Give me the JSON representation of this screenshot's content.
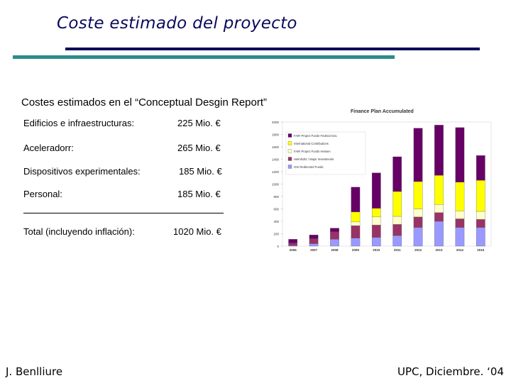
{
  "title": "Coste estimado del proyecto",
  "subtitle": "Costes estimados en el “Conceptual Desgin Report”",
  "costs": [
    {
      "label": "Edificios  e infraestructuras:",
      "value": "225 Mio. €"
    },
    {
      "label": "Aceleradorr:",
      "value": "265 Mio. €"
    },
    {
      "label": "Dispositivos experimentales:",
      "value": "185 Mio. €"
    },
    {
      "label": "Personal:",
      "value": "185 Mio. €"
    }
  ],
  "total": {
    "label": "Total (incluyendo inflación):",
    "value": "1020 Mio. €"
  },
  "footer": {
    "author": "J. Benlliure",
    "venue": "UPC, Diciembre. ‘04"
  },
  "chart_data": {
    "type": "bar",
    "stacked": true,
    "title": "Finance Plan Accumulated",
    "categories": [
      "2006",
      "2007",
      "2008",
      "2009",
      "2010",
      "2011",
      "2012",
      "2013",
      "2014",
      "2015"
    ],
    "ylim": [
      0,
      2000
    ],
    "yticks": [
      0,
      200,
      400,
      600,
      800,
      1000,
      1200,
      1400,
      1600,
      1800,
      2000
    ],
    "series": [
      {
        "name": "GSI Redirected Funds",
        "color": "#9999ff",
        "values": [
          10,
          40,
          110,
          130,
          140,
          170,
          300,
          400,
          300,
          300
        ]
      },
      {
        "name": "Helmholtz / Major Investments",
        "color": "#993366",
        "values": [
          40,
          80,
          120,
          200,
          200,
          180,
          170,
          140,
          140,
          130
        ]
      },
      {
        "name": "FAIR Project Funds Hessen",
        "color": "#ffffcc",
        "values": [
          0,
          0,
          0,
          60,
          130,
          130,
          130,
          130,
          130,
          130
        ]
      },
      {
        "name": "International Contributions",
        "color": "#ffff00",
        "values": [
          0,
          0,
          0,
          160,
          140,
          400,
          440,
          470,
          460,
          500
        ]
      },
      {
        "name": "FAIR Project Funds Federal Gov.",
        "color": "#660066",
        "values": [
          60,
          60,
          60,
          400,
          570,
          560,
          860,
          810,
          880,
          400
        ]
      }
    ]
  }
}
